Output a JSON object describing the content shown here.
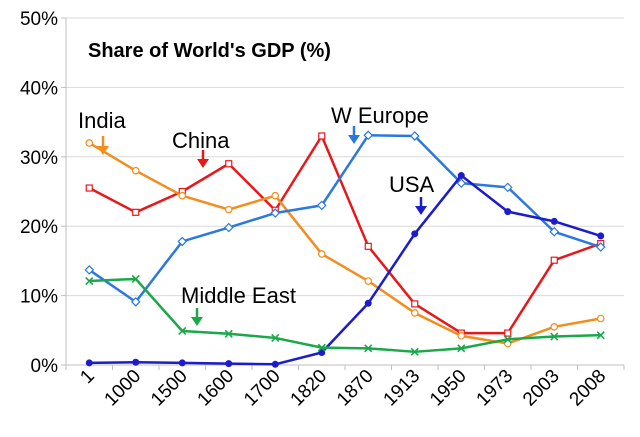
{
  "chart_data": {
    "type": "line",
    "title": "Share of World's GDP (%)",
    "categories": [
      "1",
      "1000",
      "1500",
      "1600",
      "1700",
      "1820",
      "1870",
      "1913",
      "1950",
      "1973",
      "2003",
      "2008"
    ],
    "ylim": [
      0,
      50
    ],
    "yticks": [
      "0%",
      "10%",
      "20%",
      "30%",
      "40%",
      "50%"
    ],
    "grid": true,
    "series": [
      {
        "name": "China",
        "color": "#e8181a",
        "marker": "square",
        "values": [
          25.5,
          22,
          25,
          29,
          22.3,
          33,
          17.1,
          8.8,
          4.6,
          4.6,
          15.1,
          17.5
        ]
      },
      {
        "name": "India",
        "color": "#f28d1e",
        "marker": "circle",
        "values": [
          32,
          28,
          24.4,
          22.4,
          24.4,
          16,
          12.1,
          7.5,
          4.2,
          3.1,
          5.5,
          6.7
        ]
      },
      {
        "name": "W Europe",
        "color": "#2b78de",
        "marker": "diamond",
        "values": [
          13.7,
          9.1,
          17.8,
          19.8,
          21.9,
          23,
          33.1,
          33,
          26.2,
          25.6,
          19.2,
          17
        ]
      },
      {
        "name": "USA",
        "color": "#1c1ccc",
        "marker": "dot",
        "values": [
          0.3,
          0.4,
          0.3,
          0.2,
          0.1,
          1.8,
          8.9,
          18.9,
          27.3,
          22.1,
          20.7,
          18.6
        ]
      },
      {
        "name": "Middle East",
        "color": "#1aa84a",
        "marker": "x",
        "values": [
          12.1,
          12.4,
          4.9,
          4.5,
          3.9,
          2.5,
          2.4,
          1.9,
          2.4,
          3.7,
          4.1,
          4.3
        ]
      }
    ]
  }
}
